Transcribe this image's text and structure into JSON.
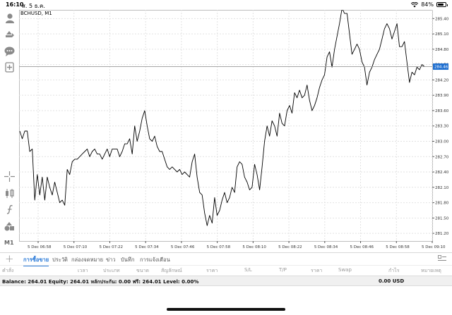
{
  "status_bar": {
    "time": "16:10",
    "date": "ส. 5 ธ.ค.",
    "battery": "84%",
    "battery_level": 0.84
  },
  "chart_title": "BCHUSD, M1",
  "chart_data": {
    "type": "line",
    "symbol": "BCHUSD",
    "timeframe": "M1",
    "x_ticks": [
      "5 Dec 06:58",
      "5 Dec 07:10",
      "5 Dec 07:22",
      "5 Dec 07:34",
      "5 Dec 07:46",
      "5 Dec 07:58",
      "5 Dec 08:10",
      "5 Dec 08:22",
      "5 Dec 08:34",
      "5 Dec 08:46",
      "5 Dec 08:58",
      "5 Dec 09:10"
    ],
    "y_ticks": [
      "285.40",
      "285.10",
      "284.80",
      "284.50",
      "284.20",
      "283.90",
      "283.60",
      "283.30",
      "283.00",
      "282.70",
      "282.40",
      "282.10",
      "281.80",
      "281.50",
      "281.20"
    ],
    "ylim": [
      281.05,
      285.57
    ],
    "current_price": "284.46",
    "current_price_value": 284.46,
    "grid": true,
    "values": [
      283.2,
      283.05,
      283.2,
      283.2,
      282.8,
      282.85,
      281.85,
      282.35,
      281.95,
      282.3,
      281.85,
      282.3,
      282.1,
      281.95,
      282.2,
      282.0,
      281.8,
      281.85,
      281.75,
      282.45,
      282.35,
      282.6,
      282.65,
      282.65,
      282.7,
      282.75,
      282.8,
      282.85,
      282.7,
      282.8,
      282.85,
      282.75,
      282.75,
      282.65,
      282.75,
      282.85,
      282.7,
      282.85,
      282.85,
      282.85,
      282.7,
      282.8,
      282.95,
      282.95,
      283.05,
      282.75,
      283.3,
      283.0,
      283.2,
      283.45,
      283.6,
      283.3,
      283.05,
      283.0,
      283.1,
      282.9,
      282.8,
      282.8,
      282.65,
      282.5,
      282.45,
      282.5,
      282.45,
      282.4,
      282.45,
      282.35,
      282.4,
      282.35,
      282.3,
      282.6,
      282.75,
      282.3,
      282.0,
      281.95,
      281.6,
      281.35,
      281.55,
      281.4,
      281.9,
      281.55,
      281.65,
      281.85,
      282.0,
      281.8,
      281.9,
      282.1,
      282.0,
      282.5,
      282.6,
      282.55,
      282.3,
      282.2,
      282.05,
      282.1,
      282.55,
      282.35,
      282.05,
      282.5,
      283.0,
      283.3,
      283.1,
      283.4,
      283.3,
      283.1,
      283.55,
      283.35,
      283.3,
      283.6,
      283.7,
      283.55,
      283.95,
      283.85,
      284.0,
      283.85,
      283.9,
      284.1,
      283.8,
      283.6,
      283.7,
      283.85,
      284.05,
      284.2,
      284.3,
      284.65,
      284.75,
      284.45,
      284.8,
      285.05,
      285.3,
      285.6,
      285.5,
      285.5,
      285.1,
      284.7,
      284.8,
      284.9,
      284.8,
      284.55,
      284.45,
      284.1,
      284.35,
      284.45,
      284.6,
      284.7,
      284.8,
      285.0,
      285.2,
      285.3,
      285.2,
      285.0,
      285.15,
      285.3,
      284.85,
      284.85,
      284.95,
      284.55,
      284.15,
      284.35,
      284.3,
      284.45,
      284.4,
      284.5,
      284.46
    ]
  },
  "tabs": [
    {
      "label": "การซื้อขาย",
      "active": true
    },
    {
      "label": "ประวัติ",
      "active": false
    },
    {
      "label": "กล่องจดหมาย",
      "active": false
    },
    {
      "label": "ข่าว",
      "active": false
    },
    {
      "label": "บันทึก",
      "active": false
    },
    {
      "label": "การแจ้งเตือน",
      "active": false
    }
  ],
  "columns": [
    "คำสั่ง",
    "เวลา",
    "ประเภท",
    "ขนาด",
    "สัญลักษณ์",
    "ราคา",
    "S/L",
    "T/P",
    "ราคา",
    "Swap",
    "กำไร",
    "หมายเหตุ"
  ],
  "balance_line": "Balance: 264.01  Equity: 264.01  หลักประกัน: 0.00  ฟรี: 264.01  Level: 0.00%",
  "profit_total": "0.00  USD",
  "toolbar": {
    "icons": [
      "account-icon",
      "trade-icon",
      "chat-icon",
      "new-order-icon",
      "crosshair-icon",
      "candles-icon",
      "indicators-icon",
      "objects-icon"
    ],
    "timeframe_label": "M1"
  },
  "colors": {
    "accent": "#2a7ad8",
    "price_label_bg": "#1f6fd0",
    "line": "#000000"
  }
}
